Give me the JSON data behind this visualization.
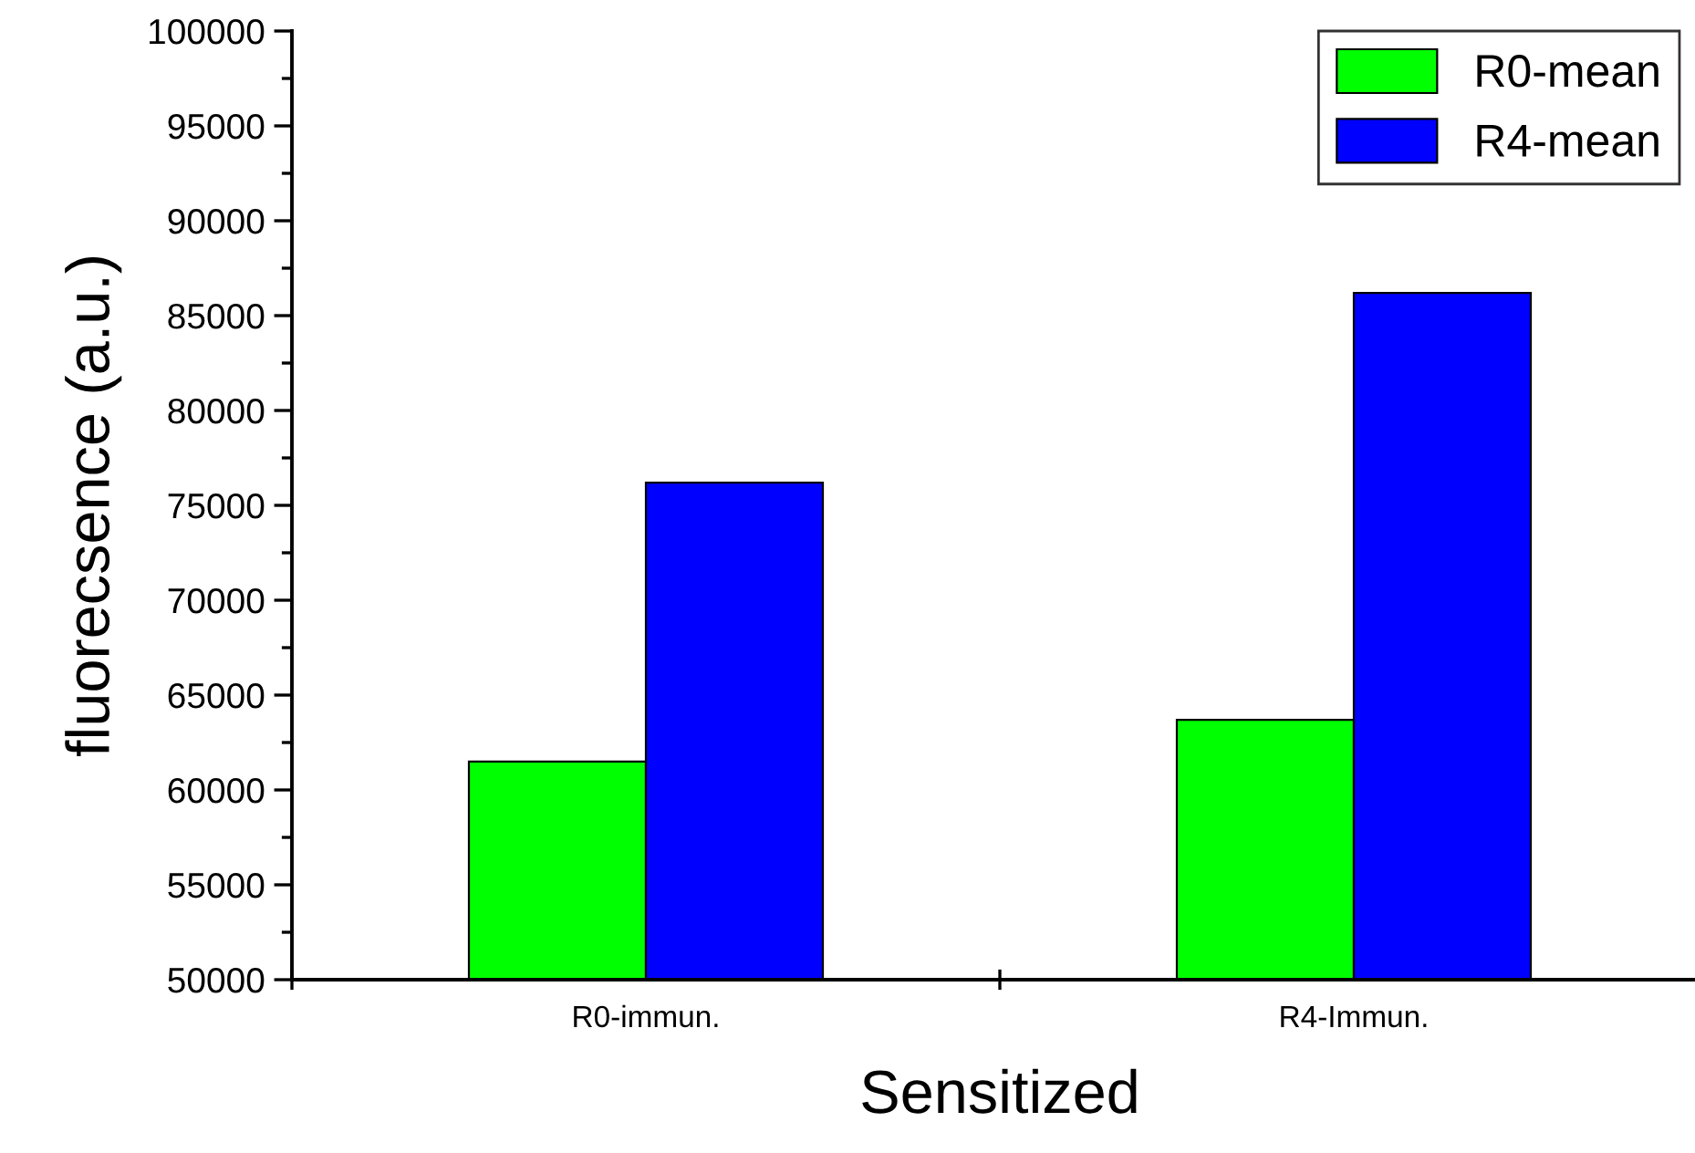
{
  "chart_data": {
    "type": "bar",
    "xlabel": "Sensitized",
    "ylabel": "fluorecsence (a.u.)",
    "categories": [
      "R0-immun.",
      "R4-Immun."
    ],
    "series": [
      {
        "name": "R0-mean",
        "color": "#00ff00",
        "values": [
          61500,
          63700
        ]
      },
      {
        "name": "R4-mean",
        "color": "#0000ff",
        "values": [
          76200,
          86200
        ]
      }
    ],
    "ylim": [
      50000,
      100000
    ],
    "yticks": [
      50000,
      55000,
      60000,
      65000,
      70000,
      75000,
      80000,
      85000,
      90000,
      95000,
      100000
    ],
    "grid": false,
    "legend": "top right"
  }
}
